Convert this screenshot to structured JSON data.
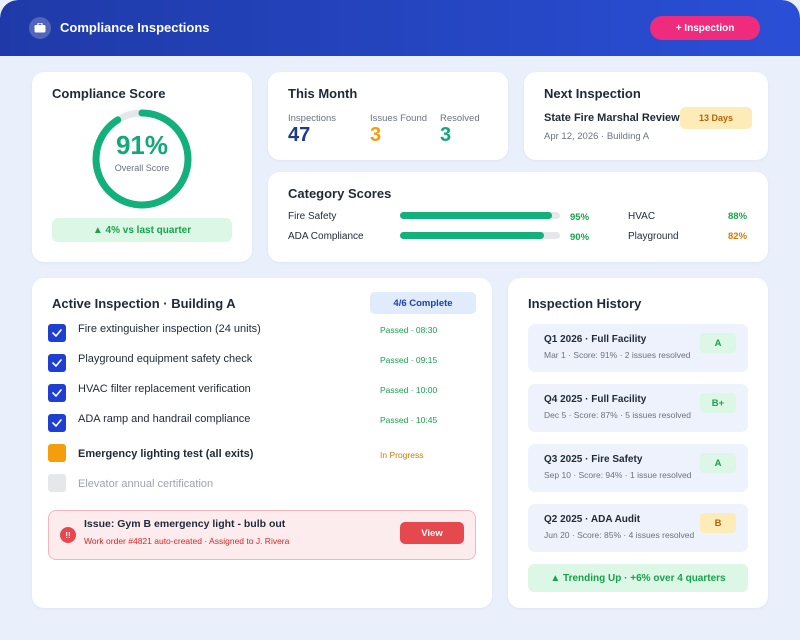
{
  "app": {
    "title": "Compliance Inspections",
    "add_button": "+ Inspection"
  },
  "colors": {
    "brand": "#2a4fd6",
    "accent": "#ee2b7c",
    "success": "#12a877",
    "warning": "#f59e0b",
    "danger": "#e5484d"
  },
  "compliance": {
    "title": "Compliance Score",
    "value": "91%",
    "value_fraction": 0.91,
    "label": "Overall Score",
    "trend": "▲ 4% vs last quarter"
  },
  "month": {
    "title": "This Month",
    "stats": [
      {
        "label": "Inspections",
        "value": "47",
        "color": "#1e3a8a"
      },
      {
        "label": "Issues Found",
        "value": "3",
        "color": "#f59e0b"
      },
      {
        "label": "Resolved",
        "value": "3",
        "color": "#12a877"
      }
    ]
  },
  "next": {
    "title": "Next Inspection",
    "name": "State Fire Marshal Review",
    "meta": "Apr 12, 2026 · Building A",
    "countdown": "13 Days"
  },
  "categories": {
    "title": "Category Scores",
    "items": [
      {
        "label": "Fire Safety",
        "value": "95%",
        "fraction": 0.95,
        "color": "#16a34a"
      },
      {
        "label": "ADA Compliance",
        "value": "90%",
        "fraction": 0.9,
        "color": "#16a34a"
      },
      {
        "label": "HVAC",
        "value": "88%",
        "fraction": 0.88,
        "color": "#16a34a"
      },
      {
        "label": "Playground",
        "value": "82%",
        "fraction": 0.82,
        "color": "#d97706"
      }
    ]
  },
  "active": {
    "title": "Active Inspection · Building A",
    "progress": "4/6 Complete",
    "tasks": [
      {
        "label": "Fire extinguisher inspection (24 units)",
        "status": "Passed · 08:30",
        "state": "done"
      },
      {
        "label": "Playground equipment safety check",
        "status": "Passed · 09:15",
        "state": "done"
      },
      {
        "label": "HVAC filter replacement verification",
        "status": "Passed · 10:00",
        "state": "done"
      },
      {
        "label": "ADA ramp and handrail compliance",
        "status": "Passed · 10:45",
        "state": "done"
      },
      {
        "label": "Emergency lighting test (all exits)",
        "status": "In Progress",
        "state": "progress"
      },
      {
        "label": "Elevator annual certification",
        "status": "",
        "state": "todo"
      }
    ],
    "issue": {
      "icon": "!!",
      "title": "Issue: Gym B emergency light - bulb out",
      "detail": "Work order #4821 auto-created · Assigned to J. Rivera",
      "button": "View"
    }
  },
  "history": {
    "title": "Inspection History",
    "items": [
      {
        "title": "Q1 2026 · Full Facility",
        "meta": "Mar 1 · Score: 91% · 2 issues resolved",
        "grade": "A",
        "tone": "green"
      },
      {
        "title": "Q4 2025 · Full Facility",
        "meta": "Dec 5 · Score: 87% · 5 issues resolved",
        "grade": "B+",
        "tone": "green"
      },
      {
        "title": "Q3 2025 · Fire Safety",
        "meta": "Sep 10 · Score: 94% · 1 issue resolved",
        "grade": "A",
        "tone": "green"
      },
      {
        "title": "Q2 2025 · ADA Audit",
        "meta": "Jun 20 · Score: 85% · 4 issues resolved",
        "grade": "B",
        "tone": "yellow"
      }
    ],
    "trend": "▲ Trending Up · +6% over 4 quarters"
  }
}
